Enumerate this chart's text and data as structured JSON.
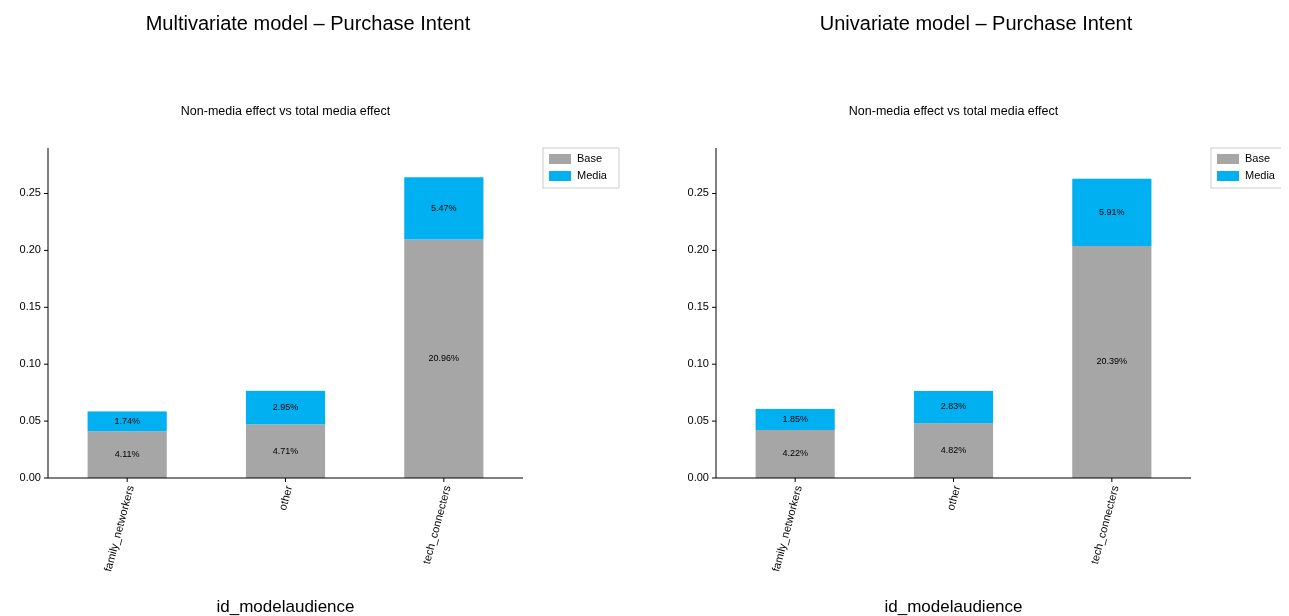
{
  "chart_data": [
    {
      "type": "bar",
      "title": "Multivariate model – Purchase Intent",
      "subtitle": "Non-media effect vs total media effect",
      "xlabel": "id_modelaudience",
      "categories": [
        "family_networkers",
        "other",
        "tech_connecters"
      ],
      "stacked": true,
      "legend": "top right",
      "ylim": [
        0,
        0.29
      ],
      "yticks": [
        {
          "value": 0,
          "label": "0.00"
        },
        {
          "value": 0.05,
          "label": "0.05"
        },
        {
          "value": 0.1,
          "label": "0.10"
        },
        {
          "value": 0.15,
          "label": "0.15"
        },
        {
          "value": 0.2,
          "label": "0.20"
        },
        {
          "value": 0.25,
          "label": "0.25"
        }
      ],
      "series": [
        {
          "name": "Base",
          "color": "#a6a6a6",
          "values": [
            0.0411,
            0.0471,
            0.2096
          ],
          "value_labels": [
            "4.11%",
            "4.71%",
            "20.96%"
          ]
        },
        {
          "name": "Media",
          "color": "#00b0f0",
          "values": [
            0.0174,
            0.0295,
            0.0547
          ],
          "value_labels": [
            "1.74%",
            "2.95%",
            "5.47%"
          ]
        }
      ]
    },
    {
      "type": "bar",
      "title": "Univariate model – Purchase Intent",
      "subtitle": "Non-media effect vs total media effect",
      "xlabel": "id_modelaudience",
      "categories": [
        "family_networkers",
        "other",
        "tech_connecters"
      ],
      "stacked": true,
      "legend": "top right",
      "ylim": [
        0,
        0.29
      ],
      "yticks": [
        {
          "value": 0,
          "label": "0.00"
        },
        {
          "value": 0.05,
          "label": "0.05"
        },
        {
          "value": 0.1,
          "label": "0.10"
        },
        {
          "value": 0.15,
          "label": "0.15"
        },
        {
          "value": 0.2,
          "label": "0.20"
        },
        {
          "value": 0.25,
          "label": "0.25"
        }
      ],
      "series": [
        {
          "name": "Base",
          "color": "#a6a6a6",
          "values": [
            0.0422,
            0.0482,
            0.2039
          ],
          "value_labels": [
            "4.22%",
            "4.82%",
            "20.39%"
          ]
        },
        {
          "name": "Media",
          "color": "#00b0f0",
          "values": [
            0.0185,
            0.0283,
            0.0591
          ],
          "value_labels": [
            "1.85%",
            "2.83%",
            "5.91%"
          ]
        }
      ]
    }
  ]
}
